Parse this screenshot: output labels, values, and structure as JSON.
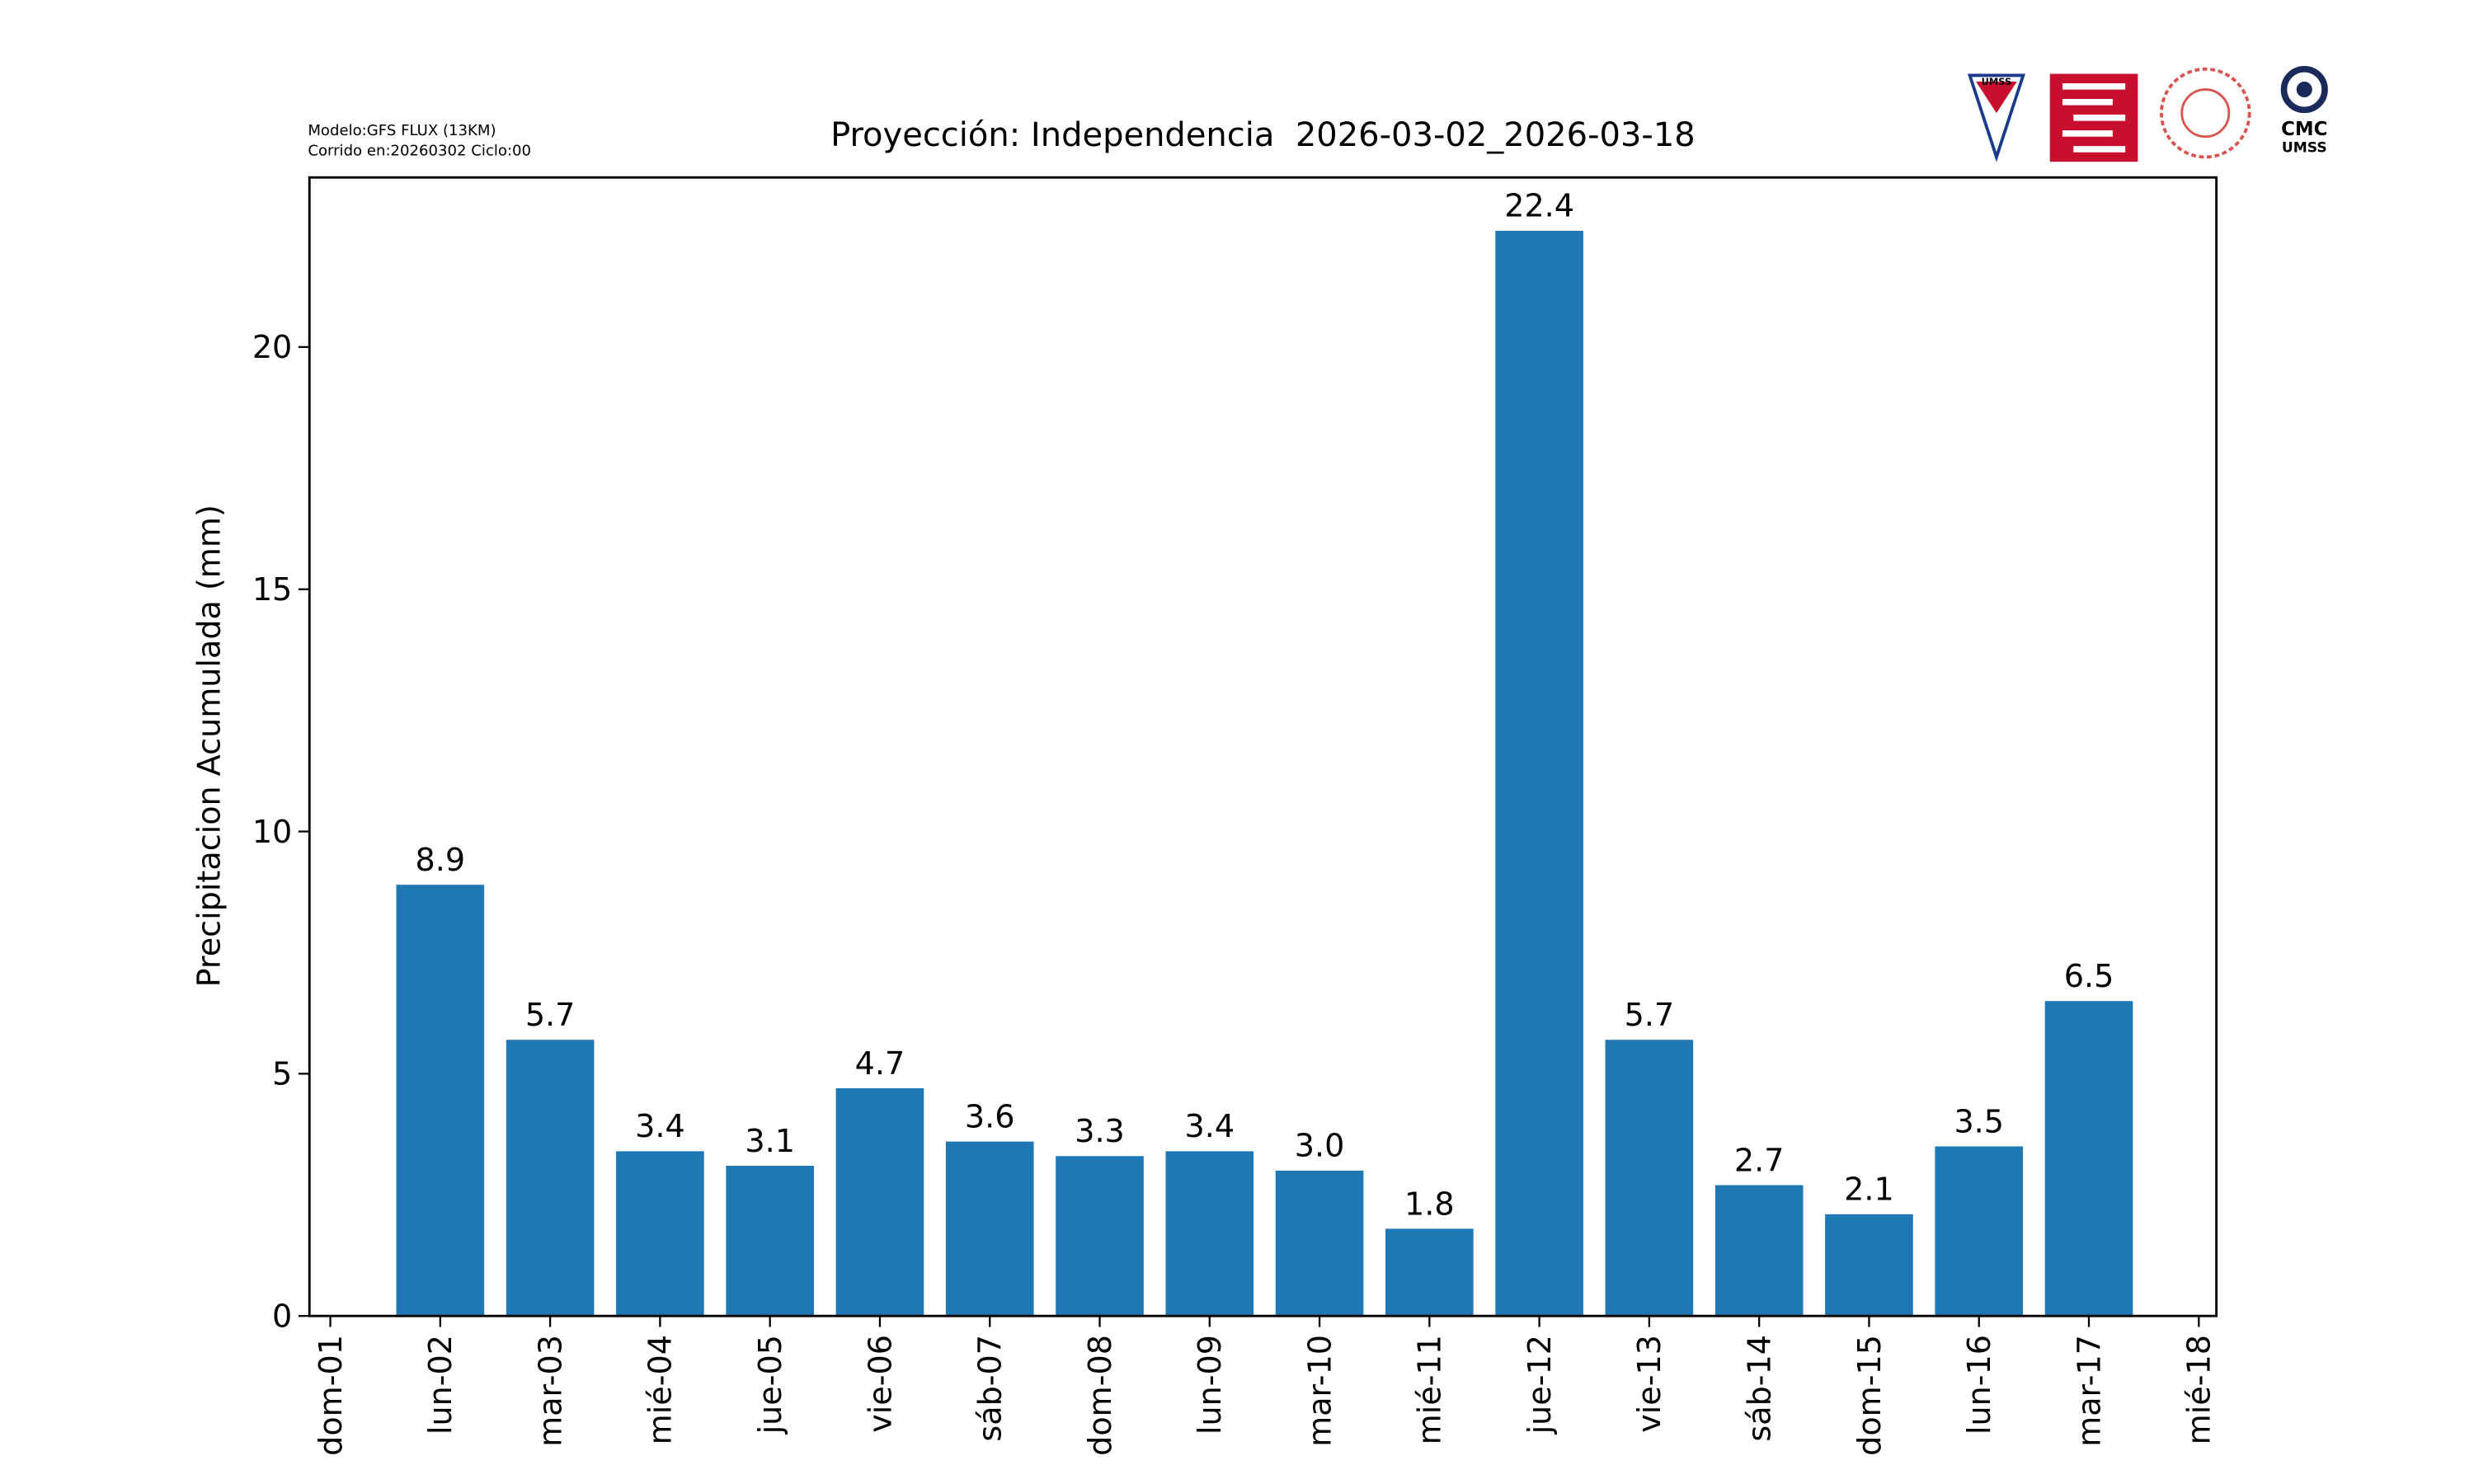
{
  "chart_data": {
    "type": "bar",
    "title": "Proyección: Independencia  2026-03-02_2026-03-18",
    "notes": [
      "Modelo:GFS FLUX (13KM)",
      "Corrido en:20260302 Ciclo:00"
    ],
    "logos": [
      "UMSS",
      "CMC",
      "UMSS"
    ],
    "ylabel": "Precipitacion Acumulada (mm)",
    "categories": [
      "dom-01",
      "lun-02",
      "mar-03",
      "mié-04",
      "jue-05",
      "vie-06",
      "sáb-07",
      "dom-08",
      "lun-09",
      "mar-10",
      "mié-11",
      "jue-12",
      "vie-13",
      "sáb-14",
      "dom-15",
      "lun-16",
      "mar-17",
      "mié-18"
    ],
    "values": [
      null,
      8.9,
      5.7,
      3.4,
      3.1,
      4.7,
      3.6,
      3.3,
      3.4,
      3.0,
      1.8,
      22.4,
      5.7,
      2.7,
      2.1,
      3.5,
      6.5,
      null
    ],
    "value_labels": [
      null,
      "8.9",
      "5.7",
      "3.4",
      "3.1",
      "4.7",
      "3.6",
      "3.3",
      "3.4",
      "3.0",
      "1.8",
      "22.4",
      "5.7",
      "2.7",
      "2.1",
      "3.5",
      "6.5",
      null
    ],
    "color": "#1f77b4",
    "ylim": [
      0,
      23.5
    ],
    "yticks": [
      0,
      5,
      10,
      15,
      20
    ],
    "grid": false
  }
}
